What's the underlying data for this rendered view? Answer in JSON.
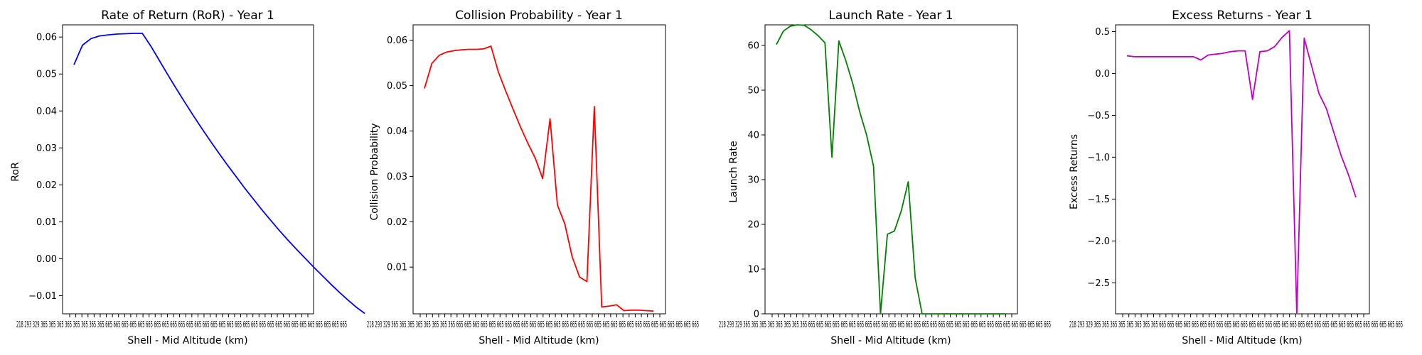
{
  "chart_data": [
    {
      "type": "line",
      "title": "Rate of Return (RoR) - Year 1",
      "xlabel": "Shell - Mid Altitude (km)",
      "ylabel": "RoR",
      "color": "#0000ff",
      "ylim": [
        -0.0149,
        0.0633
      ],
      "yticks": [
        -0.01,
        0.0,
        0.01,
        0.02,
        0.03,
        0.04,
        0.05,
        0.06
      ],
      "ytick_labels": [
        "−0.01",
        "0.00",
        "0.01",
        "0.02",
        "0.03",
        "0.04",
        "0.05",
        "0.06"
      ],
      "values": [
        0.0525,
        0.0578,
        0.0596,
        0.0603,
        0.0606,
        0.0608,
        0.0609,
        0.061,
        0.061,
        0.0575,
        0.0536,
        0.0497,
        0.0459,
        0.0422,
        0.0386,
        0.0351,
        0.0317,
        0.0284,
        0.0252,
        0.0221,
        0.019,
        0.0161,
        0.0132,
        0.0104,
        0.0077,
        0.0051,
        0.0026,
        0.0002,
        -0.0022,
        -0.0045,
        -0.0068,
        -0.009,
        -0.0111,
        -0.0131,
        -0.0148
      ]
    },
    {
      "type": "line",
      "title": "Collision Probability - Year 1",
      "xlabel": "Shell - Mid Altitude (km)",
      "ylabel": "Collision Probability",
      "color": "#ff0000",
      "ylim": [
        -0.0003,
        0.0634
      ],
      "yticks": [
        0.01,
        0.02,
        0.03,
        0.04,
        0.05,
        0.06
      ],
      "ytick_labels": [
        "0.01",
        "0.02",
        "0.03",
        "0.04",
        "0.05",
        "0.06"
      ],
      "values": [
        0.0494,
        0.0549,
        0.0567,
        0.0574,
        0.0577,
        0.0579,
        0.058,
        0.058,
        0.0581,
        0.0587,
        0.053,
        0.0488,
        0.0448,
        0.0409,
        0.0373,
        0.034,
        0.0295,
        0.0427,
        0.0237,
        0.0195,
        0.0123,
        0.0078,
        0.0068,
        0.0454,
        0.0012,
        0.0014,
        0.0017,
        0.0004,
        0.0005,
        0.0005,
        0.0004,
        0.0003
      ]
    },
    {
      "type": "line",
      "title": "Launch Rate - Year 1",
      "xlabel": "Shell - Mid Altitude (km)",
      "ylabel": "Launch Rate",
      "color": "#008000",
      "ylim": [
        0,
        64.6
      ],
      "yticks": [
        0,
        10,
        20,
        30,
        40,
        50,
        60
      ],
      "ytick_labels": [
        "0",
        "10",
        "20",
        "30",
        "40",
        "50",
        "60"
      ],
      "values": [
        60.2,
        63.2,
        64.3,
        64.6,
        64.5,
        63.5,
        62.2,
        60.6,
        35,
        61,
        56.6,
        51.5,
        45.2,
        40,
        33,
        0,
        17.8,
        18.5,
        23,
        29.5,
        8,
        0,
        0,
        0,
        0,
        0,
        0,
        0,
        0,
        0,
        0,
        0,
        0,
        0
      ]
    },
    {
      "type": "line",
      "title": "Excess Returns - Year 1",
      "xlabel": "Shell - Mid Altitude (km)",
      "ylabel": "Excess Returns",
      "color": "#bf00bf",
      "ylim": [
        -2.87,
        0.58
      ],
      "yticks": [
        -2.5,
        -2.0,
        -1.5,
        -1.0,
        -0.5,
        0.0,
        0.5
      ],
      "ytick_labels": [
        "−2.5",
        "−2.0",
        "−1.5",
        "−1.0",
        "−0.5",
        "0.0",
        "0.5"
      ],
      "values": [
        0.21,
        0.2,
        0.2,
        0.2,
        0.2,
        0.2,
        0.2,
        0.2,
        0.2,
        0.2,
        0.16,
        0.22,
        0.23,
        0.24,
        0.26,
        0.27,
        0.27,
        -0.31,
        0.26,
        0.27,
        0.32,
        0.43,
        0.51,
        -2.87,
        0.42,
        0.09,
        -0.24,
        -0.42,
        -0.7,
        -0.98,
        -1.21,
        -1.48
      ]
    }
  ],
  "x_tick_labels": [
    "218",
    "293",
    "329",
    "365",
    "...",
    "665"
  ]
}
